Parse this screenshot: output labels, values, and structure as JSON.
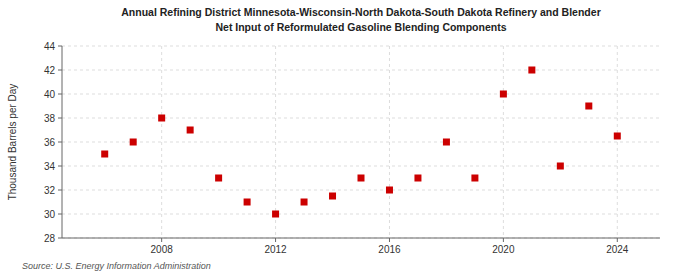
{
  "chart_data": {
    "type": "scatter",
    "title": "Annual Refining District Minnesota-Wisconsin-North Dakota-South Dakota Refinery and Blender",
    "subtitle": "Net Input of Reformulated Gasoline Blending Components",
    "y_label": "Thousand Barrels per Day",
    "source": "Source: U.S. Energy Information Administration",
    "x": [
      2006,
      2007,
      2008,
      2009,
      2010,
      2011,
      2012,
      2013,
      2014,
      2015,
      2016,
      2017,
      2018,
      2019,
      2020,
      2021,
      2022,
      2023,
      2024
    ],
    "values": [
      35.0,
      36.0,
      38.0,
      37.0,
      33.0,
      31.0,
      30.0,
      31.0,
      31.5,
      33.0,
      32.0,
      33.0,
      36.0,
      33.0,
      40.0,
      42.0,
      34.0,
      39.0,
      36.5
    ],
    "color": "#cc0000",
    "marker": "square",
    "xlim": [
      2004.5,
      2025.5
    ],
    "xticks": [
      2008,
      2012,
      2016,
      2020,
      2024
    ],
    "ylim": [
      28,
      44
    ],
    "yticks": [
      28,
      30,
      32,
      34,
      36,
      38,
      40,
      42,
      44
    ],
    "grid": true
  }
}
